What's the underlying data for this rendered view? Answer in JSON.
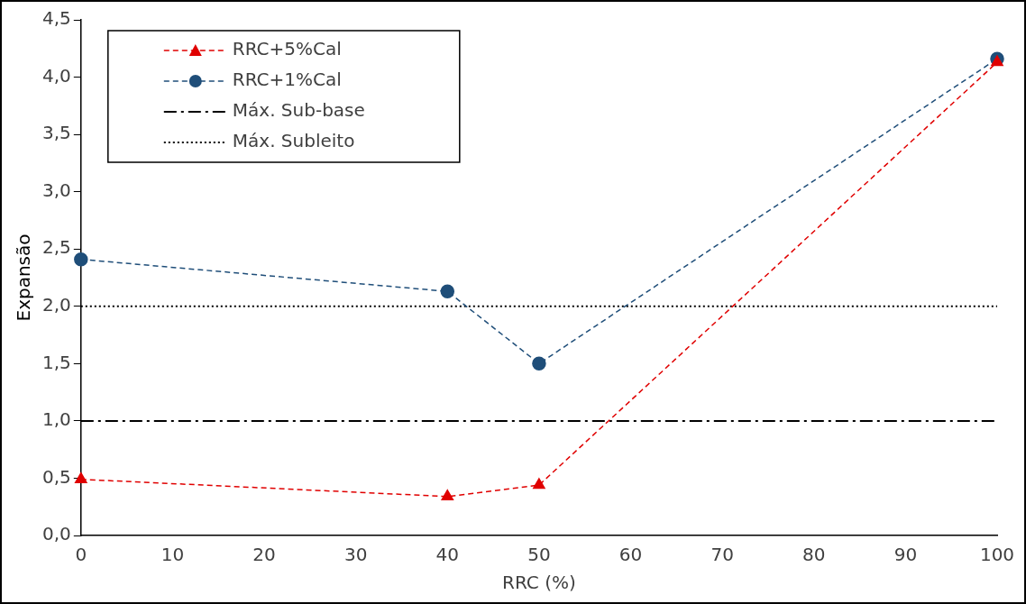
{
  "chart_data": {
    "type": "line",
    "xlabel": "RRC (%)",
    "ylabel": "Expansão",
    "x": [
      0,
      40,
      50,
      100
    ],
    "series": [
      {
        "name": "RRC+5%Cal",
        "color": "#e00000",
        "marker": "triangle",
        "line_style": "dashed",
        "values": [
          0.49,
          0.34,
          0.44,
          4.13
        ]
      },
      {
        "name": "RRC+1%Cal",
        "color": "#1f4e79",
        "marker": "circle",
        "line_style": "dashed",
        "values": [
          2.41,
          2.13,
          1.5,
          4.16
        ]
      }
    ],
    "ref_lines": [
      {
        "axis": "y",
        "value": 1.0,
        "label": "Máx. Sub-base",
        "color": "#000000",
        "line_style": "dashdot"
      },
      {
        "axis": "y",
        "value": 2.0,
        "label": "Máx. Subleito",
        "color": "#000000",
        "line_style": "dotted"
      }
    ],
    "xlim": [
      0,
      100
    ],
    "xticks": [
      0,
      10,
      20,
      30,
      40,
      50,
      60,
      70,
      80,
      90,
      100
    ],
    "ylim": [
      0,
      4.5
    ],
    "yticks": [
      {
        "value": 0,
        "label": "0,0"
      },
      {
        "value": 0.5,
        "label": "0,5"
      },
      {
        "value": 1,
        "label": "1,0"
      },
      {
        "value": 1.5,
        "label": "1,5"
      },
      {
        "value": 2,
        "label": "2,0"
      },
      {
        "value": 2.5,
        "label": "2,5"
      },
      {
        "value": 3,
        "label": "3,0"
      },
      {
        "value": 3.5,
        "label": "3,5"
      },
      {
        "value": 4,
        "label": "4,0"
      },
      {
        "value": 4.5,
        "label": "4,5"
      }
    ],
    "grid": false,
    "legend": "top left"
  }
}
